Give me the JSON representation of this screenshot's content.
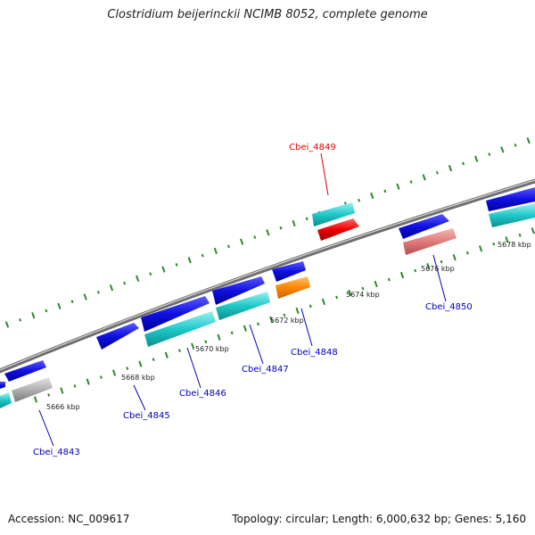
{
  "title": "Clostridium beijerinckii NCIMB 8052, complete genome",
  "footer": {
    "accession": "Accession: NC_009617",
    "topology": "Topology: circular; Length: 6,000,632 bp; Genes: 5,160"
  },
  "colors": {
    "blue": "#1010e0",
    "cyan": "#20c8c8",
    "red": "#ee0000",
    "pink": "#e07a7a",
    "orange": "#ff8800",
    "gray": "#b0b0b0",
    "highlight_label": "#e00000",
    "label": "#0000c0",
    "tick": "#2a8a2a"
  },
  "scale_labels": [
    "5666 kbp",
    "5668 kbp",
    "5670 kbp",
    "5672 kbp",
    "5674 kbp",
    "5676 kbp",
    "5678 kbp"
  ],
  "gene_labels": [
    {
      "name": "Cbei_4843",
      "highlight": false
    },
    {
      "name": "Cbei_4845",
      "highlight": false
    },
    {
      "name": "Cbei_4846",
      "highlight": false
    },
    {
      "name": "Cbei_4847",
      "highlight": false
    },
    {
      "name": "Cbei_4848",
      "highlight": false
    },
    {
      "name": "Cbei_4849",
      "highlight": true
    },
    {
      "name": "Cbei_4850",
      "highlight": false
    }
  ]
}
